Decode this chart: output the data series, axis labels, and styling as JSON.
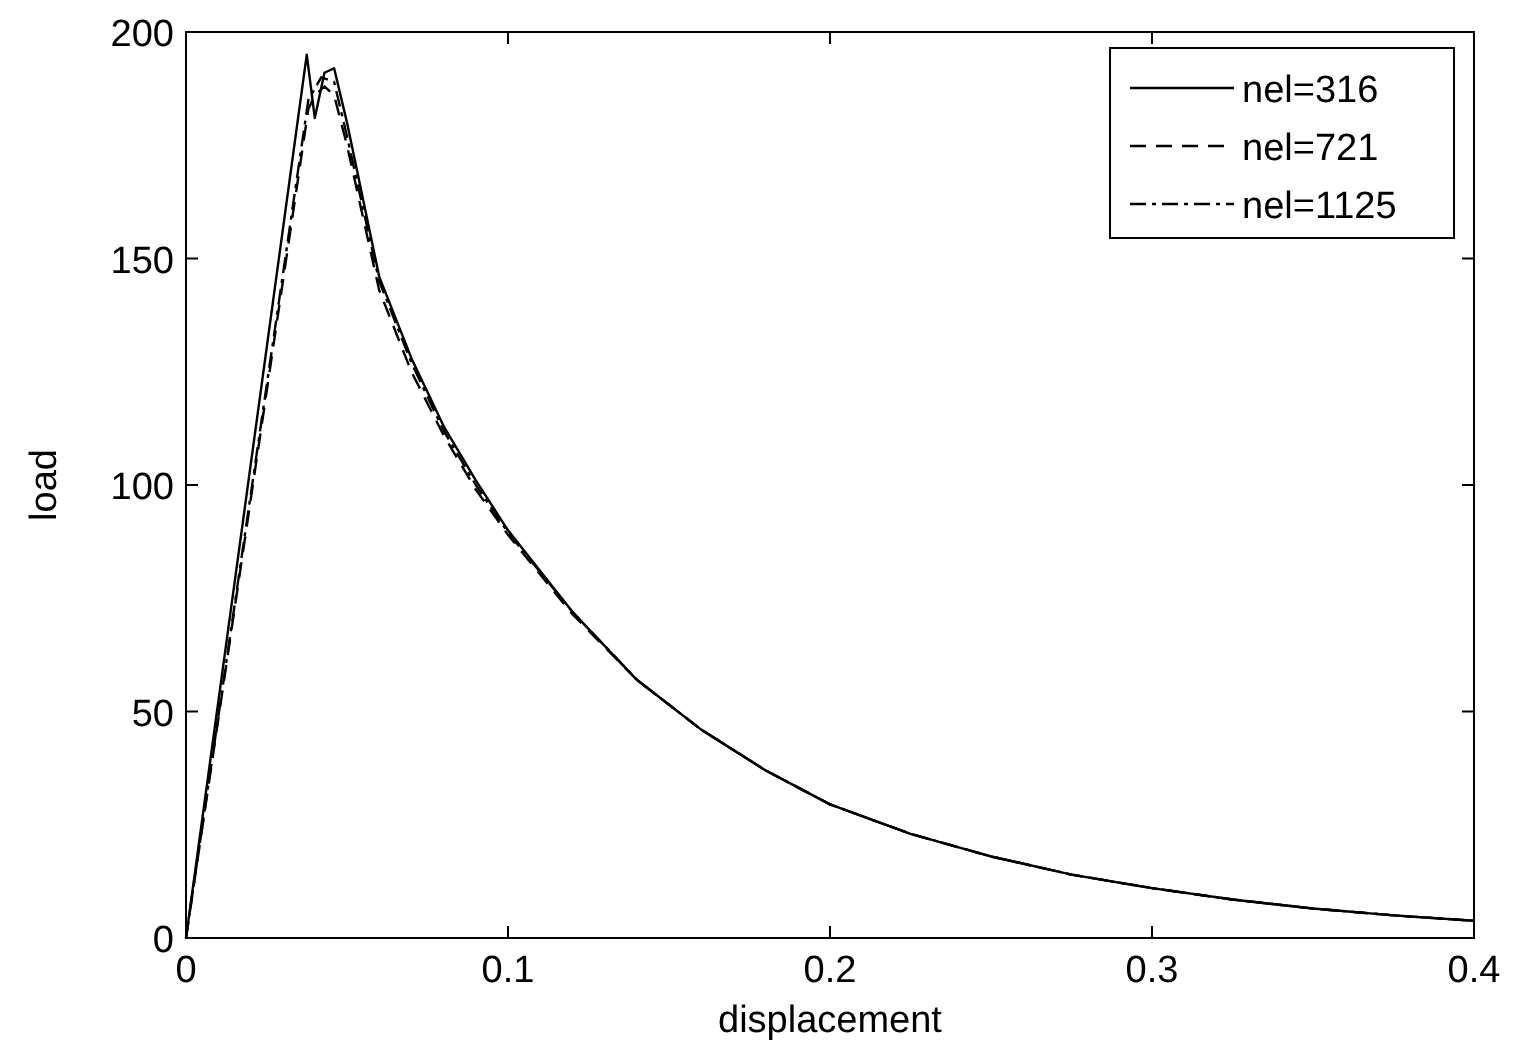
{
  "chart_data": {
    "type": "line",
    "xlabel": "displacement",
    "ylabel": "load",
    "xlim": [
      0,
      0.4
    ],
    "ylim": [
      0,
      200
    ],
    "xticks": [
      0,
      0.1,
      0.2,
      0.3,
      0.4
    ],
    "yticks": [
      0,
      50,
      100,
      150,
      200
    ],
    "grid": false,
    "legend": "top right",
    "marker": "none",
    "series": [
      {
        "name": "nel=316",
        "color": "#000000",
        "line_style": "solid",
        "x": [
          0,
          0.0375,
          0.04,
          0.043,
          0.046,
          0.05,
          0.06,
          0.07,
          0.08,
          0.09,
          0.1,
          0.12,
          0.14,
          0.16,
          0.18,
          0.2,
          0.225,
          0.25,
          0.275,
          0.3,
          0.325,
          0.35,
          0.375,
          0.4
        ],
        "values": [
          0,
          195,
          181,
          191,
          192,
          180,
          146,
          128,
          113,
          101,
          90,
          72,
          57,
          46,
          37,
          29.5,
          23,
          18,
          14,
          11,
          8.5,
          6.5,
          5,
          3.8
        ]
      },
      {
        "name": "nel=721",
        "color": "#000000",
        "line_style": "dashed",
        "x": [
          0,
          0.038,
          0.04,
          0.043,
          0.046,
          0.05,
          0.06,
          0.07,
          0.08,
          0.09,
          0.1,
          0.12,
          0.14,
          0.16,
          0.18,
          0.2,
          0.225,
          0.25,
          0.275,
          0.3,
          0.325,
          0.35,
          0.375,
          0.4
        ],
        "values": [
          0,
          183,
          186,
          188,
          186,
          175,
          143,
          125,
          111,
          99,
          89,
          71.5,
          57,
          46,
          37,
          29.5,
          23,
          18,
          14,
          11,
          8.5,
          6.5,
          5,
          3.8
        ]
      },
      {
        "name": "nel=1125",
        "color": "#000000",
        "line_style": "dashdot",
        "x": [
          0,
          0.038,
          0.042,
          0.046,
          0.05,
          0.06,
          0.07,
          0.08,
          0.09,
          0.1,
          0.12,
          0.14,
          0.16,
          0.18,
          0.2,
          0.225,
          0.25,
          0.275,
          0.3,
          0.325,
          0.35,
          0.375,
          0.4
        ],
        "values": [
          0,
          185,
          190,
          189,
          177,
          145,
          127,
          112,
          100,
          89.5,
          72,
          57,
          46,
          37,
          29.5,
          23,
          18,
          14,
          11,
          8.5,
          6.5,
          5,
          3.8
        ]
      }
    ]
  }
}
